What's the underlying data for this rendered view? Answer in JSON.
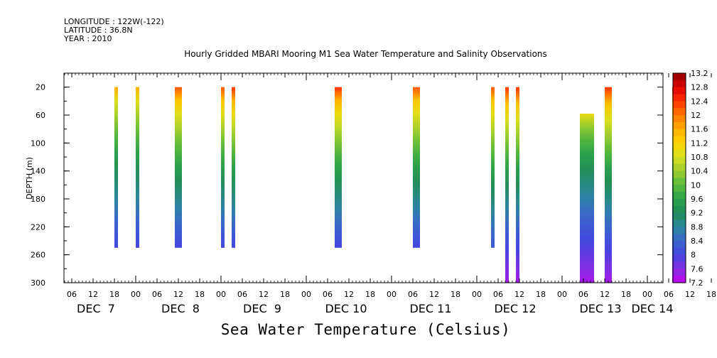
{
  "header": {
    "longitude": "LONGITUDE : 122W(-122)",
    "latitude": "LATITUDE : 36.8N",
    "year": "YEAR : 2010"
  },
  "chart_data": {
    "type": "heatmap",
    "title": "Hourly Gridded MBARI Mooring M1 Sea Water Temperature and Salinity Observations",
    "xlabel": "Sea Water Temperature (Celsius)",
    "ylabel": "DEPTH (m)",
    "ylim": [
      300,
      0
    ],
    "y_ticks": [
      20,
      60,
      100,
      140,
      180,
      220,
      260,
      300
    ],
    "x_hour_ticks": [
      "06",
      "12",
      "18",
      "00",
      "06",
      "12",
      "18",
      "00",
      "06",
      "12",
      "18",
      "00",
      "06",
      "12",
      "18",
      "00",
      "06",
      "12",
      "18",
      "00",
      "06",
      "12",
      "18",
      "00",
      "06",
      "12",
      "18",
      "00",
      "06",
      "12",
      "18",
      "00"
    ],
    "x_day_labels": [
      "DEC  7",
      "DEC  8",
      "DEC  9",
      "DEC 10",
      "DEC 11",
      "DEC 12",
      "DEC 13",
      "DEC 14"
    ],
    "x_range_hours": [
      0,
      171
    ],
    "colorbar": {
      "min": 7.2,
      "max": 13.2,
      "step": 0.2,
      "labels": [
        "13.2",
        "12.8",
        "12.4",
        "12",
        "11.6",
        "11.2",
        "10.8",
        "10.4",
        "10",
        "9.6",
        "9.2",
        "8.8",
        "8.4",
        "8",
        "7.6",
        "7.2"
      ]
    },
    "profiles": [
      {
        "start_hour": 12,
        "end_hour": 13,
        "depth_range": [
          20,
          250
        ],
        "temp_top": 11.6,
        "temp_bottom": 8.0
      },
      {
        "start_hour": 18,
        "end_hour": 19,
        "depth_range": [
          20,
          250
        ],
        "temp_top": 11.6,
        "temp_bottom": 8.0
      },
      {
        "start_hour": 29,
        "end_hour": 31,
        "depth_range": [
          20,
          250
        ],
        "temp_top": 12.2,
        "temp_bottom": 8.0
      },
      {
        "start_hour": 42,
        "end_hour": 43,
        "depth_range": [
          20,
          250
        ],
        "temp_top": 12.2,
        "temp_bottom": 8.0
      },
      {
        "start_hour": 45,
        "end_hour": 46,
        "depth_range": [
          20,
          250
        ],
        "temp_top": 12.4,
        "temp_bottom": 8.0
      },
      {
        "start_hour": 74,
        "end_hour": 76,
        "depth_range": [
          20,
          250
        ],
        "temp_top": 12.4,
        "temp_bottom": 8.0
      },
      {
        "start_hour": 96,
        "end_hour": 98,
        "depth_range": [
          20,
          250
        ],
        "temp_top": 12.2,
        "temp_bottom": 8.0
      },
      {
        "start_hour": 118,
        "end_hour": 119,
        "depth_range": [
          20,
          250
        ],
        "temp_top": 12.2,
        "temp_bottom": 8.2
      },
      {
        "start_hour": 122,
        "end_hour": 123,
        "depth_range": [
          20,
          300
        ],
        "temp_top": 12.4,
        "temp_bottom": 7.4
      },
      {
        "start_hour": 125,
        "end_hour": 126,
        "depth_range": [
          20,
          300
        ],
        "temp_top": 12.4,
        "temp_bottom": 7.4
      },
      {
        "start_hour": 143,
        "end_hour": 147,
        "depth_range": [
          58,
          300
        ],
        "temp_top": 11.0,
        "temp_bottom": 7.4
      },
      {
        "start_hour": 150,
        "end_hour": 152,
        "depth_range": [
          20,
          300
        ],
        "temp_top": 12.4,
        "temp_bottom": 7.4
      },
      {
        "start_hour": 169,
        "end_hour": 171,
        "depth_range": [
          20,
          300
        ],
        "temp_top": 12.4,
        "temp_bottom": 7.4
      }
    ]
  }
}
